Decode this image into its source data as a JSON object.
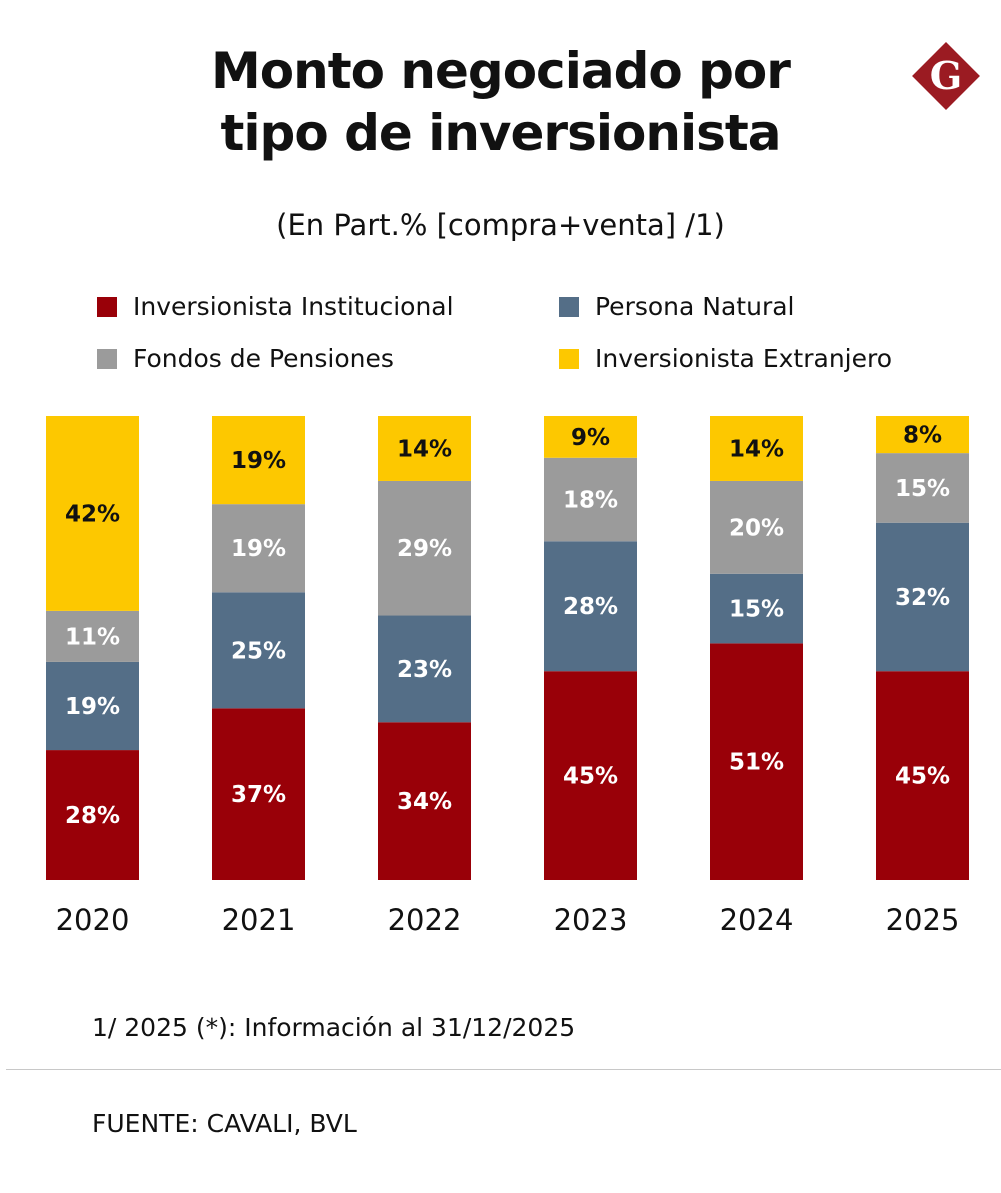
{
  "header": {
    "title_line1": "Monto negociado por",
    "title_line2": "tipo de inversionista",
    "subtitle": "(En Part.% [compra+venta] /1)",
    "logo_text": "G"
  },
  "colors": {
    "institucional": "#990008",
    "natural": "#546e87",
    "pensiones": "#9b9b9b",
    "extranjero": "#fdc800",
    "logo": "#9b1b22"
  },
  "chart_data": {
    "type": "bar",
    "stacked": true,
    "categories": [
      "2020",
      "2021",
      "2022",
      "2023",
      "2024",
      "2025"
    ],
    "ylim": [
      0,
      100
    ],
    "unit": "%",
    "grid": false,
    "legend_placement": "top",
    "series": [
      {
        "name": "Inversionista Institucional",
        "color": "#990008",
        "label_color": "#ffffff",
        "values": [
          28,
          37,
          34,
          45,
          51,
          45
        ]
      },
      {
        "name": "Persona Natural",
        "color": "#546e87",
        "label_color": "#ffffff",
        "values": [
          19,
          25,
          23,
          28,
          15,
          32
        ]
      },
      {
        "name": "Fondos de Pensiones",
        "color": "#9b9b9b",
        "label_color": "#ffffff",
        "values": [
          11,
          19,
          29,
          18,
          20,
          15
        ]
      },
      {
        "name": "Inversionista Extranjero",
        "color": "#fdc800",
        "label_color": "#111111",
        "values": [
          42,
          19,
          14,
          9,
          14,
          8
        ]
      }
    ]
  },
  "footer": {
    "note": "1/ 2025 (*): Información al 31/12/2025",
    "source": "FUENTE: CAVALI, BVL"
  }
}
